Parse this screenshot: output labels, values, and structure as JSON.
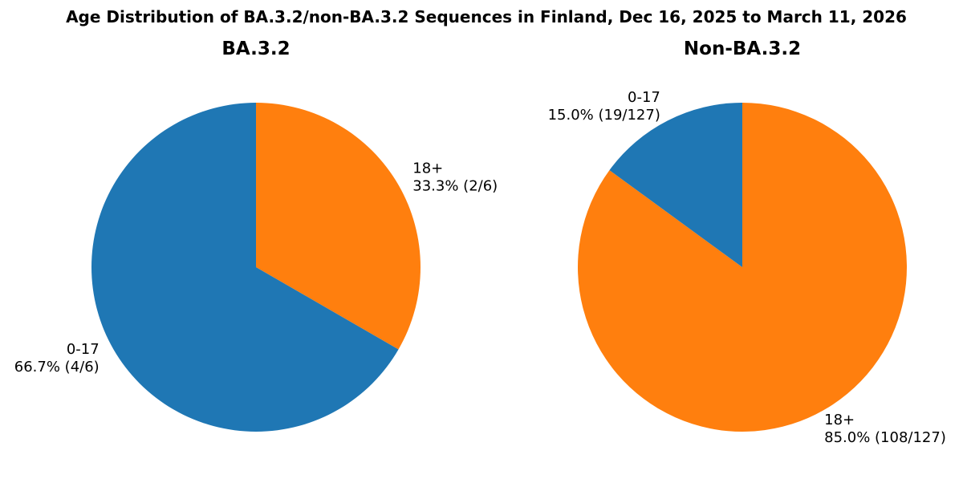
{
  "title": "Age Distribution of BA.3.2/non-BA.3.2 Sequences in Finland, Dec 16, 2025 to March 11, 2026",
  "colors": {
    "0-17": "#1f77b4",
    "18+": "#ff7f0e"
  },
  "chart_data": [
    {
      "type": "pie",
      "title": "BA.3.2",
      "start_angle_deg": 90,
      "direction": "clockwise",
      "slices": [
        {
          "label": "18+",
          "value": 2,
          "pct_text": "33.3% (2/6)",
          "color": "#ff7f0e"
        },
        {
          "label": "0-17",
          "value": 4,
          "pct_text": "66.7% (4/6)",
          "color": "#1f77b4"
        }
      ],
      "total": 6
    },
    {
      "type": "pie",
      "title": "Non-BA.3.2",
      "start_angle_deg": 90,
      "direction": "clockwise",
      "slices": [
        {
          "label": "18+",
          "value": 108,
          "pct_text": "85.0% (108/127)",
          "color": "#ff7f0e"
        },
        {
          "label": "0-17",
          "value": 19,
          "pct_text": "15.0% (19/127)",
          "color": "#1f77b4"
        }
      ],
      "total": 127
    }
  ]
}
